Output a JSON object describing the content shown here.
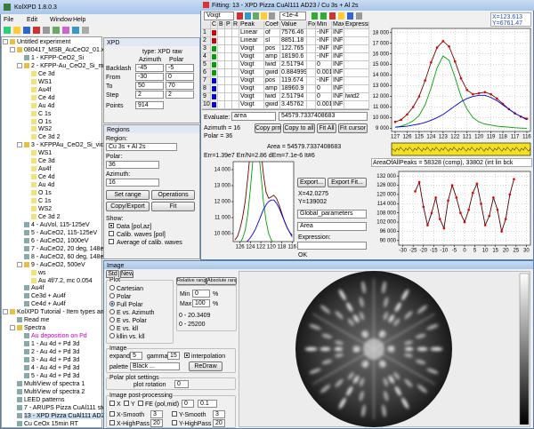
{
  "main_window": {
    "title": "KolXPD 1.8.0.3",
    "menu": [
      "File",
      "Edit",
      "Window",
      "Help"
    ],
    "tree": [
      "Untitled experiment",
      "080417_MSB_AuCeO2_01.xy",
      "1 - KFPP-CeO2_Si",
      "2 - KFPP-Au_CeO2_Si_meraAu",
      "Ce 3d",
      "WS1",
      "Au4f",
      "Ce 4d",
      "Au 4d",
      "C 1s",
      "O 1s",
      "WS2",
      "Ce 3d 2",
      "3 - KFPPAu_CeO2_Si_viceAu",
      "WS1",
      "Ce 3d",
      "Au4f",
      "Ce 4d",
      "Au 4d",
      "O 1s",
      "C 1s",
      "WS2",
      "Ce 3d 2",
      "4 - AuVol, 115-125eV",
      "5 - AuCeO2, 115-125eV",
      "6 - AuCeO2, 1000eV",
      "7 - AuCeO2, 20 deg, 148eV",
      "8 - AuCeO2, 60 deg, 148eV",
      "9 - AuCeO2, 500eV",
      "ws",
      "Au 4f/7.2, mc 0.054",
      "Au4f",
      "Ce3d + Au4f",
      "Ce4d + Au4f",
      "KolXPD Tutorial - Item types and can",
      "Read me",
      "Spectra",
      "Au deposition on Pd",
      "1 - Au 4d + Pd 3d",
      "2 - Au 4d + Pd 3d",
      "3 - Au 4d + Pd 3d",
      "4 - Au 4d + Pd 3d",
      "5 - Au 4d + Pd 3d",
      "MultiView of spectra 1",
      "MultiView of spectra 2",
      "LEED patterns",
      "7 - ARUPS Pizza CuAl111 step",
      "13 - XPD Pizza CuAl111 AD23",
      "Cu CeOx 15min RT"
    ]
  },
  "xpd": {
    "title": "XPD",
    "type": "type: XPD raw",
    "headers": [
      "Azimuth",
      "Polar"
    ],
    "rows": [
      {
        "label": "Backlash",
        "values": [
          -45,
          -5
        ]
      },
      {
        "label": "From",
        "values": [
          -30,
          0
        ]
      },
      {
        "label": "To",
        "values": [
          50,
          70
        ]
      },
      {
        "label": "Step",
        "values": [
          2,
          2
        ]
      }
    ],
    "points": {
      "label": "Points",
      "value": 914
    }
  },
  "regions": {
    "title": "Regions",
    "region_label": "Region:",
    "region": "Cu 3s + Al 2s",
    "polar_label": "Polar:",
    "polar": 36,
    "azimuth_label": "Azimuth:",
    "azimuth": 16,
    "buttons": [
      "Set range",
      "Operations",
      "Copy/Export",
      "Fit"
    ],
    "show_label": "Show:",
    "show_options": [
      "Data [pol,az]",
      "Calib. waves [pol]",
      "Average of calib. waves"
    ]
  },
  "fitting": {
    "title": "Fitting: 13 - XPD Pizza CuAl111 AD23 / Cu 3s + Al 2s",
    "toolbar": [
      "Voigt",
      "<1e-4"
    ],
    "table": {
      "headers": [
        "C",
        "B",
        "P",
        "R",
        "Peak",
        "Coef",
        "Value",
        "Fix",
        "Min",
        "Max",
        "Expression"
      ],
      "rows": [
        {
          "n": 1,
          "peak": "Linear",
          "coef": "of",
          "value": 7576.46,
          "min": "-INF",
          "max": "INF"
        },
        {
          "n": 2,
          "peak": "Linear",
          "coef": "sl",
          "value": 8851.18,
          "min": "-INF",
          "max": "INF"
        },
        {
          "n": 3,
          "peak": "Voigt",
          "coef": "pos",
          "value": 122.765,
          "min": "-INF",
          "max": "INF"
        },
        {
          "n": 4,
          "peak": "Voigt",
          "coef": "amp",
          "value": 18190.6,
          "min": "-INF",
          "max": "INF"
        },
        {
          "n": 5,
          "peak": "Voigt",
          "coef": "lwid",
          "value": 2.51794,
          "min": 0,
          "max": "INF"
        },
        {
          "n": 6,
          "peak": "Voigt",
          "coef": "gwid",
          "value": 0.884999,
          "min": 0.001,
          "max": "INF"
        },
        {
          "n": 7,
          "peak": "Voigt",
          "coef": "pos",
          "value": 119.674,
          "min": "-INF",
          "max": "INF"
        },
        {
          "n": 8,
          "peak": "Voigt",
          "coef": "amp",
          "value": 18960.9,
          "min": 0,
          "max": "INF"
        },
        {
          "n": 9,
          "peak": "Voigt",
          "coef": "lwid",
          "value": 2.51794,
          "min": 0,
          "max": "INF",
          "expression": "lwid2"
        },
        {
          "n": 10,
          "peak": "Voigt",
          "coef": "gwid",
          "value": 3.45762,
          "min": 0.001,
          "max": "INF"
        }
      ],
      "row_colors": [
        "#d00000",
        "#d00000",
        "#00a000",
        "#00a000",
        "#00a000",
        "#00a000",
        "#0000e0",
        "#0000e0",
        "#0000e0",
        "#0000e0"
      ]
    },
    "readout": [
      "X=123.613",
      "Y=6761.47"
    ],
    "evaluate": {
      "label": "Evaluate:",
      "what": "area",
      "result": "54579.7337408683"
    },
    "angles": [
      "Azimuth = 16",
      "Polar = 36"
    ],
    "buttons": [
      "Copy prm",
      "Copy to all",
      "Fit All",
      "Fit cursor"
    ],
    "area": "Area = 54579.7337408683",
    "chart": {
      "type": "line",
      "grid": true,
      "xlim": [
        127.3,
        115.7
      ],
      "xticks": [
        127,
        126,
        125,
        124,
        123,
        122,
        121,
        120,
        119,
        118,
        117,
        116
      ],
      "ylim": [
        8700,
        18400
      ],
      "yticks": [
        {
          "value": 9000,
          "label": "9 000"
        },
        {
          "value": 10000,
          "label": "10 000"
        },
        {
          "value": 11000,
          "label": "11 000"
        },
        {
          "value": 12000,
          "label": "12 000"
        },
        {
          "value": 13000,
          "label": "13 000"
        },
        {
          "value": 14000,
          "label": "14 000"
        },
        {
          "value": 15000,
          "label": "15 000"
        },
        {
          "value": 16000,
          "label": "16 000"
        },
        {
          "value": 17000,
          "label": "17 000"
        },
        {
          "value": 18000,
          "label": "18 000"
        }
      ],
      "x": [
        127,
        126.5,
        126,
        125.5,
        125,
        124.5,
        124,
        123.5,
        123,
        122.5,
        122,
        121.5,
        121,
        120.5,
        120,
        119.5,
        119,
        118.5,
        118,
        117.5,
        117,
        116.5,
        116
      ],
      "series": [
        {
          "color": "#700000",
          "marker_color": "#e00000",
          "markers": true,
          "values": [
            9600,
            9800,
            10300,
            11000,
            12000,
            13500,
            15200,
            16600,
            17200,
            16700,
            15300,
            13700,
            12600,
            12200,
            12300,
            12400,
            12200,
            11800,
            11300,
            10800,
            10400,
            10100,
            9900
          ]
        },
        {
          "color": "#00a000",
          "markers": false,
          "values": [
            9100,
            9200,
            9400,
            9700,
            10200,
            11200,
            12800,
            14700,
            15800,
            15400,
            13800,
            12000,
            10800,
            10000,
            9600,
            9400,
            9300,
            9200,
            9150,
            9100,
            9050,
            9020,
            9000
          ]
        },
        {
          "color": "#0000e0",
          "markers": false,
          "values": [
            9100,
            9150,
            9200,
            9300,
            9400,
            9550,
            9750,
            10000,
            10300,
            10700,
            11100,
            11500,
            11800,
            12000,
            12100,
            12100,
            11900,
            11600,
            11200,
            10800,
            10400,
            10100,
            9800
          ]
        }
      ]
    }
  },
  "middle_chart": {
    "type": "line",
    "stats": "Err=1.39e7  Err/N=2.86  dEm=7.1e-6  It#6",
    "xlim": [
      127.3,
      115.7
    ],
    "xticks": [
      126,
      124,
      122,
      120,
      118,
      116
    ],
    "ylim": [
      9500,
      14500
    ],
    "yticks": [
      {
        "value": 10000,
        "label": "10 000"
      },
      {
        "value": 11000,
        "label": "11 000"
      },
      {
        "value": 12000,
        "label": "12 000"
      },
      {
        "value": 13000,
        "label": "13 000"
      },
      {
        "value": 14000,
        "label": "14 000"
      }
    ]
  },
  "middle_controls": {
    "buttons": [
      "Export...",
      "Export Fit..."
    ],
    "readout": [
      "X=42.0275",
      "Y=139002"
    ],
    "selects": [
      "Global_parameters",
      "Area"
    ],
    "expression_label": "Expression:",
    "ok": "OK"
  },
  "profile": {
    "type": "line",
    "grid": true,
    "title": "AreaOfAllPeaks = 58328 (comp), 33802 (int lin bck",
    "xlim": [
      -32,
      32
    ],
    "xticks": [
      -30,
      -25,
      -20,
      -15,
      -10,
      -5,
      0,
      5,
      10,
      15,
      20,
      25,
      30
    ],
    "ylim": [
      87000,
      135000
    ],
    "yticks": [
      {
        "value": 90000,
        "label": "90 000"
      },
      {
        "value": 96000,
        "label": "96 000"
      },
      {
        "value": 102000,
        "label": "102 000"
      },
      {
        "value": 108000,
        "label": "108 000"
      },
      {
        "value": 114000,
        "label": "114 000"
      },
      {
        "value": 120000,
        "label": "120 000"
      },
      {
        "value": 126000,
        "label": "126 000"
      },
      {
        "value": 132000,
        "label": "132 000"
      }
    ],
    "x": [
      -24,
      -22,
      -20,
      -18,
      -16,
      -14,
      -12,
      -10,
      -8,
      -6,
      -4,
      -2,
      0,
      2,
      4,
      6,
      8,
      10,
      12,
      14,
      16,
      18,
      20,
      22,
      24
    ],
    "values": [
      122000,
      128000,
      112000,
      100000,
      108000,
      118000,
      104000,
      98000,
      116000,
      126000,
      118000,
      108000,
      102000,
      110000,
      121000,
      127000,
      114000,
      100000,
      106000,
      118000,
      110000,
      96000,
      104000,
      120000,
      130000
    ],
    "color": "#500000",
    "marker_color": "#e00000"
  },
  "image": {
    "title": "Image",
    "tabs": [
      "Std",
      "New"
    ],
    "plot_label": "Plot",
    "plot_options": [
      "Cartesian",
      "Polar",
      "Full Polar",
      "E vs. Azimuth",
      "E vs. Polar",
      "E vs. kll",
      "kllin vs. kll"
    ],
    "selected": 2,
    "range_tabs": [
      "Relative range",
      "Absolute range"
    ],
    "min_label": "Min",
    "min": 0,
    "max_label": "Max",
    "max": 100,
    "percent": "%",
    "ranges": [
      "0 - 20.3409",
      "0 - 25200"
    ],
    "image_label": "Image",
    "expand_label": "expand",
    "expand": 5,
    "gamma_label": "gamma",
    "gamma": 15,
    "interpolation": "interpolation",
    "palette_label": "palette",
    "palette": "Black ...",
    "redraw": "ReDraw",
    "polar_settings": "Polar plot settings",
    "rotation_label": "plot rotation",
    "rotation": 0,
    "post_label": "Image post-processing",
    "post_checks": [
      "X",
      "Y",
      "FE (pol,mid)"
    ],
    "post_values": [
      0,
      0.1
    ],
    "smooth": [
      {
        "label": "X-Smooth",
        "value": 3
      },
      {
        "label": "Y-Smooth",
        "value": 3
      },
      {
        "label": "X-HighPass",
        "value": 20
      },
      {
        "label": "Y-HighPass",
        "value": 20
      }
    ]
  }
}
